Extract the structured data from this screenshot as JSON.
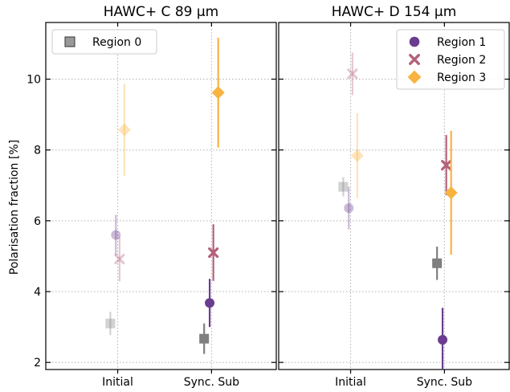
{
  "chart_data": {
    "type": "scatter",
    "ylabel": "Polarisation fraction [%]",
    "ylim": [
      1.8,
      11.6
    ],
    "yticks": [
      "2",
      "4",
      "6",
      "8",
      "10"
    ],
    "categories": [
      "Initial",
      "Sync. Sub"
    ],
    "grid": true,
    "panels": [
      {
        "title": "HAWC+ C 89 μm",
        "legend": "top-left",
        "legend_entries": [
          "Region 0"
        ],
        "series": [
          {
            "name": "Region 0",
            "marker": "square",
            "color": "#7f7f7f",
            "points": [
              {
                "category": "Initial",
                "y": 3.1,
                "yerr": 0.33,
                "faded": true
              },
              {
                "category": "Sync. Sub",
                "y": 2.67,
                "yerr": 0.43,
                "faded": false
              }
            ]
          },
          {
            "name": "Region 1",
            "marker": "circle",
            "color": "#6a3d8f",
            "points": [
              {
                "category": "Initial",
                "y": 5.6,
                "yerr": 0.57,
                "faded": true
              },
              {
                "category": "Sync. Sub",
                "y": 3.68,
                "yerr": 0.68,
                "faded": false
              }
            ]
          },
          {
            "name": "Region 2",
            "marker": "x",
            "color": "#b5617a",
            "points": [
              {
                "category": "Initial",
                "y": 4.92,
                "yerr": 0.63,
                "faded": true
              },
              {
                "category": "Sync. Sub",
                "y": 5.1,
                "yerr": 0.8,
                "faded": false
              }
            ]
          },
          {
            "name": "Region 3",
            "marker": "diamond",
            "color": "#f8b340",
            "points": [
              {
                "category": "Initial",
                "y": 8.57,
                "yerr": 1.3,
                "faded": true
              },
              {
                "category": "Sync. Sub",
                "y": 9.62,
                "yerr": 1.55,
                "faded": false
              }
            ]
          }
        ]
      },
      {
        "title": "HAWC+ D 154 μm",
        "legend": "top-right",
        "legend_entries": [
          "Region 1",
          "Region 2",
          "Region 3"
        ],
        "series": [
          {
            "name": "Region 0",
            "marker": "square",
            "color": "#7f7f7f",
            "points": [
              {
                "category": "Initial",
                "y": 6.96,
                "yerr": 0.27,
                "faded": true
              },
              {
                "category": "Sync. Sub",
                "y": 4.8,
                "yerr": 0.47,
                "faded": false
              }
            ]
          },
          {
            "name": "Region 1",
            "marker": "circle",
            "color": "#6a3d8f",
            "points": [
              {
                "category": "Initial",
                "y": 6.36,
                "yerr": 0.6,
                "faded": true
              },
              {
                "category": "Sync. Sub",
                "y": 2.64,
                "yerr": 0.9,
                "faded": false
              }
            ]
          },
          {
            "name": "Region 2",
            "marker": "x",
            "color": "#b5617a",
            "points": [
              {
                "category": "Initial",
                "y": 10.15,
                "yerr": 0.6,
                "faded": true
              },
              {
                "category": "Sync. Sub",
                "y": 7.57,
                "yerr": 0.85,
                "faded": false
              }
            ]
          },
          {
            "name": "Region 3",
            "marker": "diamond",
            "color": "#f8b340",
            "points": [
              {
                "category": "Initial",
                "y": 7.84,
                "yerr": 1.2,
                "faded": true
              },
              {
                "category": "Sync. Sub",
                "y": 6.79,
                "yerr": 1.75,
                "faded": false
              }
            ]
          }
        ]
      }
    ]
  }
}
